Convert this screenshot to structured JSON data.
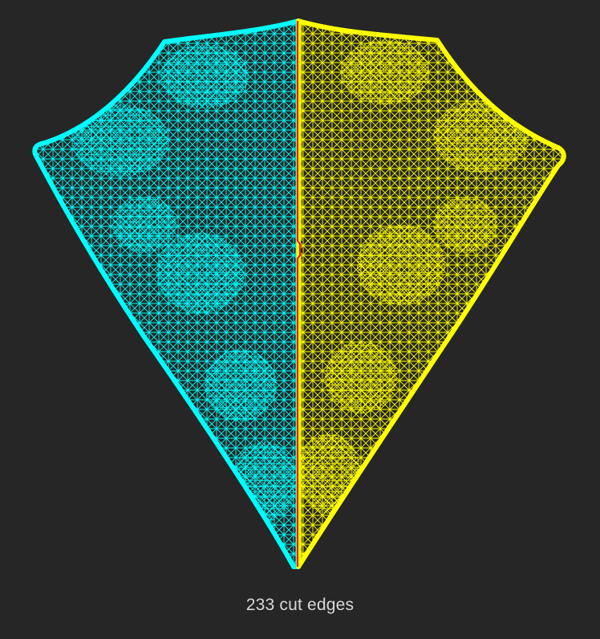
{
  "caption": "233 cut edges",
  "colors": {
    "background": "#262626",
    "partition_left": "#00ffff",
    "partition_right": "#ffff00",
    "cut_edges": "#ff1a00",
    "caption_text": "#d8d8d8"
  }
}
